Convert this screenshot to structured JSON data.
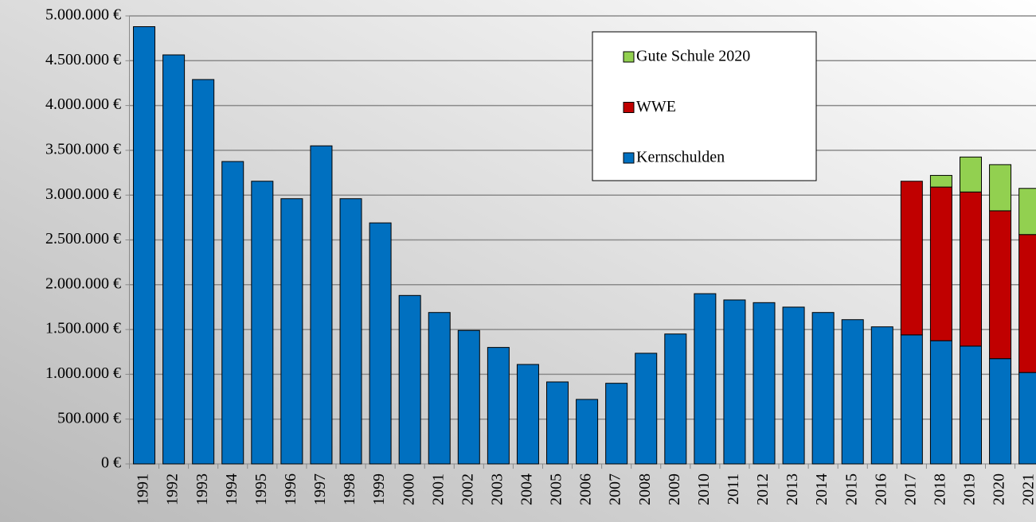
{
  "chart_data": {
    "type": "stacked_bar",
    "categories": [
      "1991",
      "1992",
      "1993",
      "1994",
      "1995",
      "1996",
      "1997",
      "1998",
      "1999",
      "2000",
      "2001",
      "2002",
      "2003",
      "2004",
      "2005",
      "2006",
      "2007",
      "2008",
      "2009",
      "2010",
      "2011",
      "2012",
      "2013",
      "2014",
      "2015",
      "2016",
      "2017",
      "2018",
      "2019",
      "2020",
      "2021"
    ],
    "series": [
      {
        "name": "Kernschulden",
        "color": "#0070c0",
        "values": [
          4880000,
          4565000,
          4290000,
          3375000,
          3155000,
          2960000,
          3550000,
          2960000,
          2690000,
          1880000,
          1690000,
          1490000,
          1300000,
          1110000,
          915000,
          720000,
          900000,
          1235000,
          1450000,
          1900000,
          1830000,
          1800000,
          1750000,
          1690000,
          1610000,
          1530000,
          1440000,
          1375000,
          1315000,
          1175000,
          1020000
        ]
      },
      {
        "name": "WWE",
        "color": "#c00000",
        "values": [
          null,
          null,
          null,
          null,
          null,
          null,
          null,
          null,
          null,
          null,
          null,
          null,
          null,
          null,
          null,
          null,
          null,
          null,
          null,
          null,
          null,
          null,
          null,
          null,
          null,
          null,
          1715000,
          1715000,
          1720000,
          1650000,
          1540000
        ]
      },
      {
        "name": "Gute Schule 2020",
        "color": "#92d050",
        "values": [
          null,
          null,
          null,
          null,
          null,
          null,
          null,
          null,
          null,
          null,
          null,
          null,
          null,
          null,
          null,
          null,
          null,
          null,
          null,
          null,
          null,
          null,
          null,
          null,
          null,
          null,
          null,
          130000,
          390000,
          515000,
          515000
        ]
      }
    ],
    "ylim": [
      0,
      5000000
    ],
    "yticks": [
      {
        "value": 0,
        "label": "0 €"
      },
      {
        "value": 500000,
        "label": "500.000 €"
      },
      {
        "value": 1000000,
        "label": "1.000.000 €"
      },
      {
        "value": 1500000,
        "label": "1.500.000 €"
      },
      {
        "value": 2000000,
        "label": "2.000.000 €"
      },
      {
        "value": 2500000,
        "label": "2.500.000 €"
      },
      {
        "value": 3000000,
        "label": "3.000.000 €"
      },
      {
        "value": 3500000,
        "label": "3.500.000 €"
      },
      {
        "value": 4000000,
        "label": "4.000.000 €"
      },
      {
        "value": 4500000,
        "label": "4.500.000 €"
      },
      {
        "value": 5000000,
        "label": "5.000.000 €"
      }
    ],
    "grid": true,
    "legend": "top-right"
  }
}
